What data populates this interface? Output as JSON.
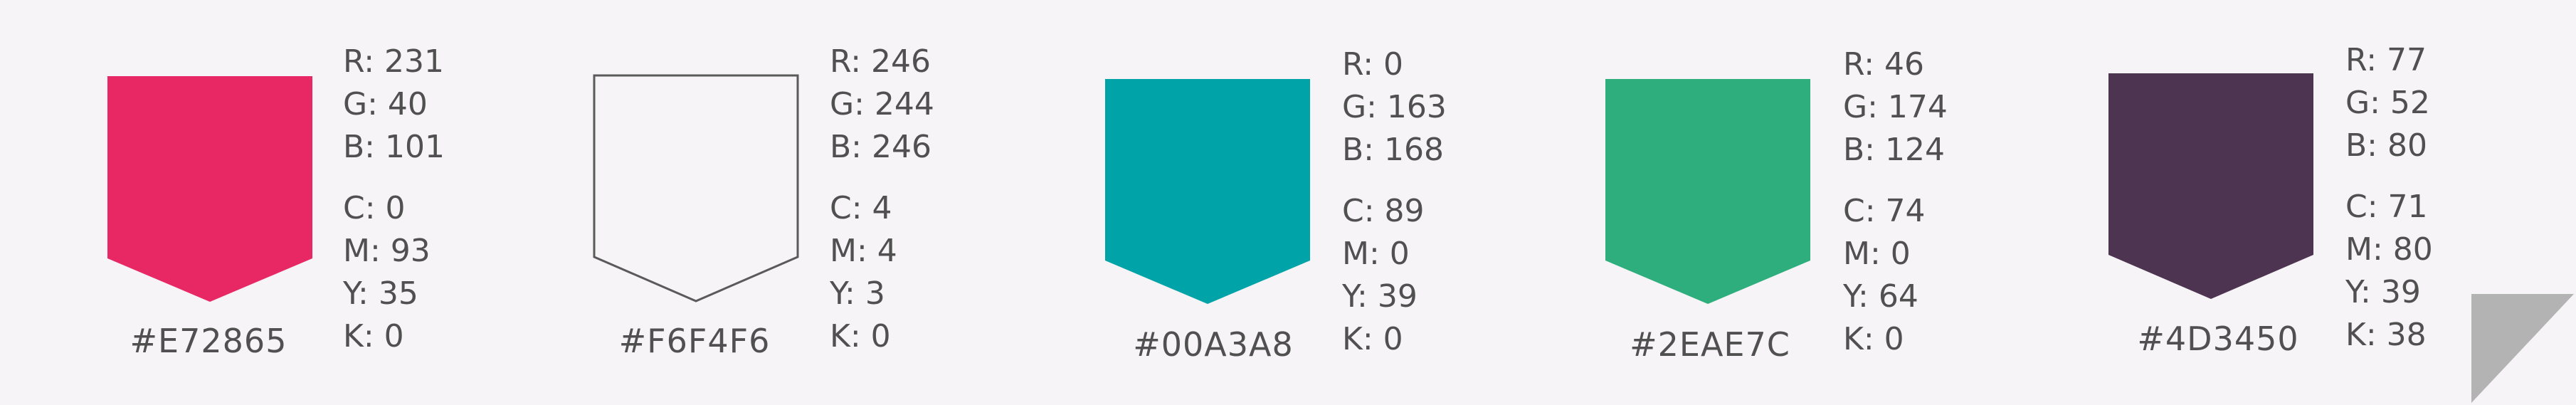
{
  "swatches": [
    {
      "hex": "#E72865",
      "fill": "#E72865",
      "stroke": "none",
      "rgb": {
        "r": "R: 231",
        "g": "G: 40",
        "b": "B: 101"
      },
      "cmyk": {
        "c": "C: 0",
        "m": "M: 93",
        "y": "Y: 35",
        "k": "K: 0"
      }
    },
    {
      "hex": "#F6F4F6",
      "fill": "#F6F4F6",
      "stroke": "#5A5A5A",
      "rgb": {
        "r": "R: 246",
        "g": "G: 244",
        "b": "B: 246"
      },
      "cmyk": {
        "c": "C: 4",
        "m": "M: 4",
        "y": "Y: 3",
        "k": "K: 0"
      }
    },
    {
      "hex": "#00A3A8",
      "fill": "#00A3A8",
      "stroke": "none",
      "rgb": {
        "r": "R: 0",
        "g": "G: 163",
        "b": "B: 168"
      },
      "cmyk": {
        "c": "C: 89",
        "m": "M: 0",
        "y": "Y: 39",
        "k": "K: 0"
      }
    },
    {
      "hex": "#2EAE7C",
      "fill": "#2EAE7C",
      "stroke": "none",
      "rgb": {
        "r": "R: 46",
        "g": "G: 174",
        "b": "B: 124"
      },
      "cmyk": {
        "c": "C: 74",
        "m": "M: 0",
        "y": "Y: 64",
        "k": "K: 0"
      }
    },
    {
      "hex": "#4D3450",
      "fill": "#4D3450",
      "stroke": "none",
      "rgb": {
        "r": "R: 77",
        "g": "G: 52",
        "b": "B: 80"
      },
      "cmyk": {
        "c": "C: 71",
        "m": "M: 80",
        "y": "Y: 39",
        "k": "K: 38"
      }
    }
  ],
  "page_curl": {
    "color": "#B3B3B3",
    "icon": "page-curl-icon"
  }
}
